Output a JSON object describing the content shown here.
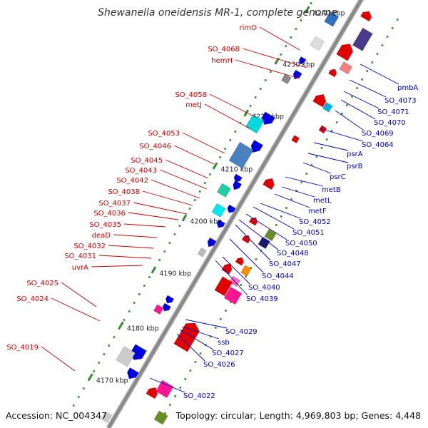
{
  "title": "Shewanella oneidensis MR-1, complete genome",
  "footer": {
    "accession": "Accession: NC_004347",
    "summary": "Topology: circular; Length: 4,969,803 bp; Genes: 4,448"
  },
  "colors": {
    "forward_label": "#cc0000",
    "reverse_label": "#0000cc",
    "backbone": "#888888",
    "tick": "#2f8f2f"
  },
  "kbp_marks": [
    "4170 kbp",
    "4180 kbp",
    "4190 kbp",
    "4200 kbp",
    "4210 kbp",
    "4220 kbp",
    "4230 kbp",
    "4240 kbp"
  ],
  "forward_genes": [
    "rimO",
    "SO_4068",
    "hemH",
    "SO_4058",
    "metJ",
    "SO_4053",
    "SO_4046",
    "SO_4045",
    "SO_4043",
    "SO_4042",
    "SO_4038",
    "SO_4037",
    "SO_4036",
    "SO_4035",
    "deaD",
    "SO_4032",
    "SO_4031",
    "uvrA",
    "SO_4025",
    "SO_4024",
    "SO_4019"
  ],
  "reverse_genes": [
    "pmbA",
    "SO_4073",
    "SO_4071",
    "SO_4070",
    "SO_4069",
    "SO_4064",
    "psrA",
    "psrB",
    "psrC",
    "metB",
    "metL",
    "metF",
    "SO_4052",
    "SO_4051",
    "SO_4050",
    "SO_4048",
    "SO_4047",
    "SO_4044",
    "SO_4040",
    "SO_4039",
    "SO_4029",
    "ssb",
    "SO_4027",
    "SO_4026",
    "SO_4022"
  ]
}
